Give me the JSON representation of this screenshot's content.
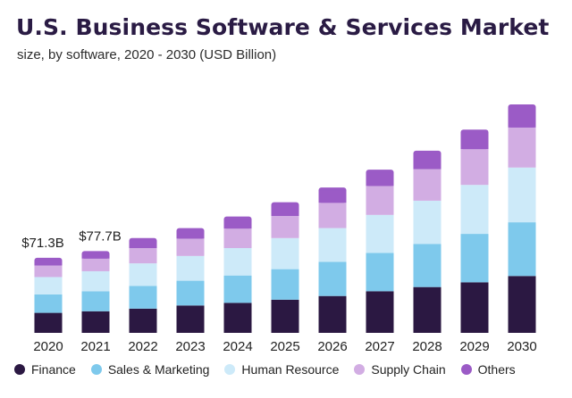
{
  "header": {
    "title": "U.S. Business Software & Services Market",
    "subtitle": "size, by software, 2020 - 2030 (USD Billion)"
  },
  "chart_data": {
    "type": "bar",
    "stacked": true,
    "title": "U.S. Business Software & Services Market",
    "subtitle": "size, by software, 2020 - 2030 (USD Billion)",
    "xlabel": "",
    "ylabel": "",
    "categories": [
      "2020",
      "2021",
      "2022",
      "2023",
      "2024",
      "2025",
      "2026",
      "2027",
      "2028",
      "2029",
      "2030"
    ],
    "series": [
      {
        "name": "Finance",
        "color": "#2b1842",
        "values": [
          19.0,
          20.5,
          23.0,
          26.0,
          28.5,
          31.5,
          35.0,
          39.5,
          43.5,
          48.0,
          54.0
        ]
      },
      {
        "name": "Sales & Marketing",
        "color": "#7ec9ec",
        "values": [
          17.5,
          19.0,
          21.5,
          23.5,
          26.0,
          29.0,
          32.5,
          36.5,
          41.0,
          46.0,
          51.0
        ]
      },
      {
        "name": "Human Resource",
        "color": "#cdeaf9",
        "values": [
          16.5,
          19.0,
          21.5,
          23.5,
          26.0,
          29.5,
          32.0,
          36.0,
          41.0,
          46.5,
          52.0
        ]
      },
      {
        "name": "Supply Chain",
        "color": "#d2ade3",
        "values": [
          11.0,
          12.0,
          14.5,
          16.5,
          18.5,
          21.0,
          24.0,
          27.5,
          30.0,
          34.0,
          38.0
        ]
      },
      {
        "name": "Others",
        "color": "#9b5bc6",
        "values": [
          7.3,
          7.2,
          9.5,
          10.0,
          11.5,
          13.0,
          14.5,
          15.5,
          17.5,
          18.5,
          22.0
        ]
      }
    ],
    "data_labels": [
      {
        "category": "2020",
        "text": "$71.3B"
      },
      {
        "category": "2021",
        "text": "$77.7B"
      }
    ],
    "grid": false,
    "legend_position": "bottom"
  }
}
